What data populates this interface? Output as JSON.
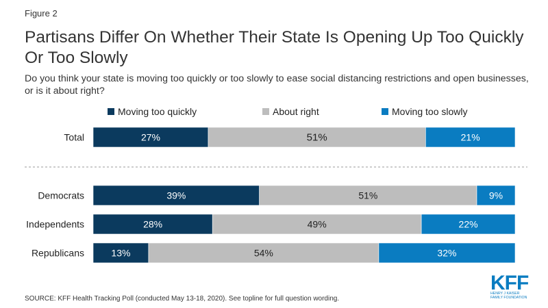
{
  "figure_label": "Figure 2",
  "source": "SOURCE: KFF Health Tracking Poll (conducted May 13-18, 2020). See topline for full question wording.",
  "logo": {
    "text": "KFF",
    "line1": "HENRY J KAISER",
    "line2": "FAMILY FOUNDATION"
  },
  "colors": {
    "quickly": "#0b3a5e",
    "about_right": "#bdbdbd",
    "slowly": "#0a7cc1"
  },
  "chart_data": {
    "type": "bar",
    "orientation": "horizontal",
    "stacked": true,
    "title": "Partisans Differ On Whether Their State Is Opening Up Too Quickly Or Too Slowly",
    "subtitle": "Do you think your state is moving too quickly or too slowly to ease social distancing restrictions and open businesses, or is it about right?",
    "legend_position": "top",
    "categories": [
      "Total",
      "Democrats",
      "Independents",
      "Republicans"
    ],
    "series": [
      {
        "name": "Moving too quickly",
        "values": [
          27,
          39,
          28,
          13
        ],
        "labels": [
          "27%",
          "39%",
          "28%",
          "13%"
        ]
      },
      {
        "name": "About right",
        "values": [
          51,
          51,
          49,
          54
        ],
        "labels": [
          "51%",
          "51%",
          "49%",
          "54%"
        ]
      },
      {
        "name": "Moving too slowly",
        "values": [
          21,
          9,
          22,
          32
        ],
        "labels": [
          "21%",
          "9%",
          "22%",
          "32%"
        ]
      }
    ]
  }
}
